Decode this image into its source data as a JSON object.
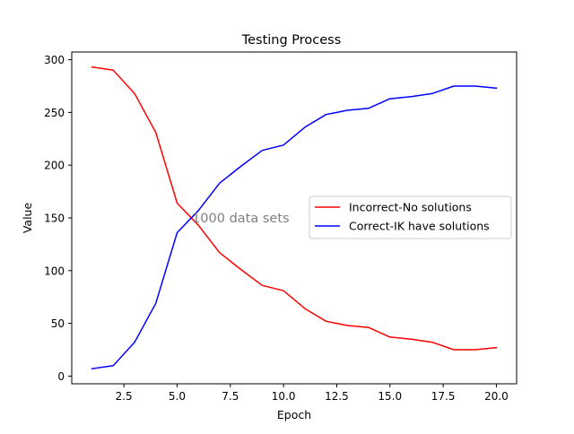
{
  "chart_data": {
    "type": "line",
    "title": "Testing Process",
    "xlabel": "Epoch",
    "ylabel": "Value",
    "xlim": [
      0.05,
      20.95
    ],
    "ylim": [
      -7.3,
      307.3
    ],
    "xticks": [
      2.5,
      5.0,
      7.5,
      10.0,
      12.5,
      15.0,
      17.5,
      20.0
    ],
    "xtick_labels": [
      "2.5",
      "5.0",
      "7.5",
      "10.0",
      "12.5",
      "15.0",
      "17.5",
      "20.0"
    ],
    "yticks": [
      0,
      50,
      100,
      150,
      200,
      250,
      300
    ],
    "ytick_labels": [
      "0",
      "50",
      "100",
      "150",
      "200",
      "250",
      "300"
    ],
    "grid": false,
    "legend_position": "center-right",
    "x": [
      1,
      2,
      3,
      4,
      5,
      6,
      7,
      8,
      9,
      10,
      11,
      12,
      13,
      14,
      15,
      16,
      17,
      18,
      19,
      20
    ],
    "series": [
      {
        "name": "Incorrect-No solutions",
        "color": "#ff0000",
        "values": [
          293,
          290,
          268,
          231,
          164,
          143,
          117,
          101,
          86,
          81,
          64,
          52,
          48,
          46,
          37,
          35,
          32,
          25,
          25,
          27
        ]
      },
      {
        "name": "Correct-IK have solutions",
        "color": "#0000ff",
        "values": [
          7,
          10,
          32,
          69,
          136,
          157,
          183,
          199,
          214,
          219,
          236,
          248,
          252,
          254,
          263,
          265,
          268,
          275,
          275,
          273
        ]
      }
    ],
    "annotation": {
      "text": "1000 data sets",
      "x": 5.7,
      "y": 150,
      "color": "#808080"
    }
  }
}
